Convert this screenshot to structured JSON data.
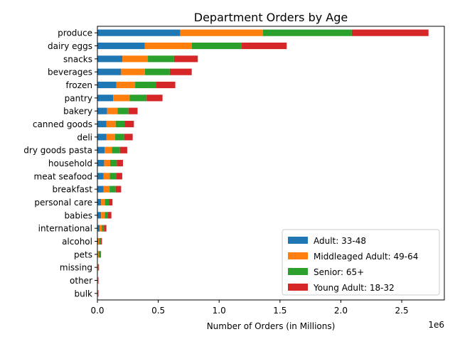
{
  "chart_data": {
    "type": "bar",
    "orientation": "horizontal",
    "stacked": true,
    "title": "Department Orders by Age",
    "xlabel": "Number of Orders (in Millions)",
    "ylabel": "",
    "x_offset_text": "1e6",
    "xlim": [
      0,
      2850000
    ],
    "xticks": [
      0,
      500000,
      1000000,
      1500000,
      2000000,
      2500000
    ],
    "xtick_labels": [
      "0.0",
      "0.5",
      "1.0",
      "1.5",
      "2.0",
      "2.5"
    ],
    "grid": false,
    "legend_position": "lower-right",
    "categories": [
      "produce",
      "dairy eggs",
      "snacks",
      "beverages",
      "frozen",
      "pantry",
      "bakery",
      "canned goods",
      "deli",
      "dry goods pasta",
      "household",
      "meat seafood",
      "breakfast",
      "personal care",
      "babies",
      "international",
      "alcohol",
      "pets",
      "missing",
      "other",
      "bulk"
    ],
    "series": [
      {
        "name": "Adult: 33-48",
        "color": "#1f77b4",
        "values": [
          680000,
          390000,
          205000,
          195000,
          155000,
          130000,
          80000,
          75000,
          75000,
          60000,
          55000,
          50000,
          50000,
          30000,
          30000,
          18000,
          6000,
          5000,
          3000,
          2000,
          2000
        ]
      },
      {
        "name": "Middleaged Adult: 49-64",
        "color": "#ff7f0e",
        "values": [
          680000,
          385000,
          210000,
          195000,
          155000,
          135000,
          85000,
          75000,
          70000,
          60000,
          50000,
          52000,
          50000,
          32000,
          30000,
          18000,
          8000,
          6000,
          3000,
          2000,
          2000
        ]
      },
      {
        "name": "Senior: 65+",
        "color": "#2ca02c",
        "values": [
          730000,
          410000,
          215000,
          205000,
          170000,
          140000,
          90000,
          75000,
          75000,
          65000,
          55000,
          52000,
          50000,
          32000,
          25000,
          18000,
          15000,
          15000,
          2000,
          2000,
          2000
        ]
      },
      {
        "name": "Young Adult: 18-32",
        "color": "#d62728",
        "values": [
          630000,
          370000,
          195000,
          180000,
          160000,
          130000,
          75000,
          75000,
          70000,
          60000,
          50000,
          50000,
          45000,
          30000,
          30000,
          20000,
          8000,
          4000,
          5000,
          3000,
          3000
        ]
      }
    ]
  }
}
